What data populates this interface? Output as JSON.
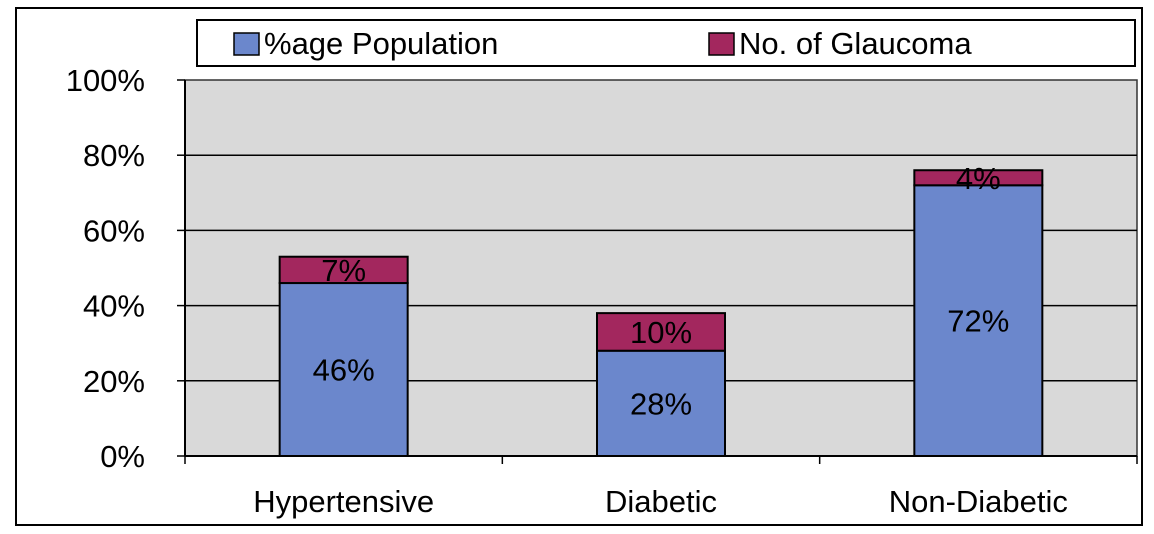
{
  "chart_data": {
    "type": "bar",
    "stacked": true,
    "categories": [
      "Hypertensive",
      "Diabetic",
      "Non-Diabetic"
    ],
    "series": [
      {
        "name": "%age Population",
        "values": [
          46,
          28,
          72
        ],
        "labels": [
          "46%",
          "28%",
          "72%"
        ],
        "color": "#6b87cc"
      },
      {
        "name": "No. of Glaucoma",
        "values": [
          7,
          10,
          4
        ],
        "labels": [
          "7%",
          "10%",
          "4%"
        ],
        "color": "#a3275e"
      }
    ],
    "ylim": [
      0,
      100
    ],
    "yticks": [
      0,
      20,
      40,
      60,
      80,
      100
    ],
    "ytick_labels": [
      "0%",
      "20%",
      "40%",
      "60%",
      "80%",
      "100%"
    ],
    "grid": true,
    "legend_position": "top",
    "plot_background": "#d9d9d9",
    "grid_color": "#000000"
  }
}
